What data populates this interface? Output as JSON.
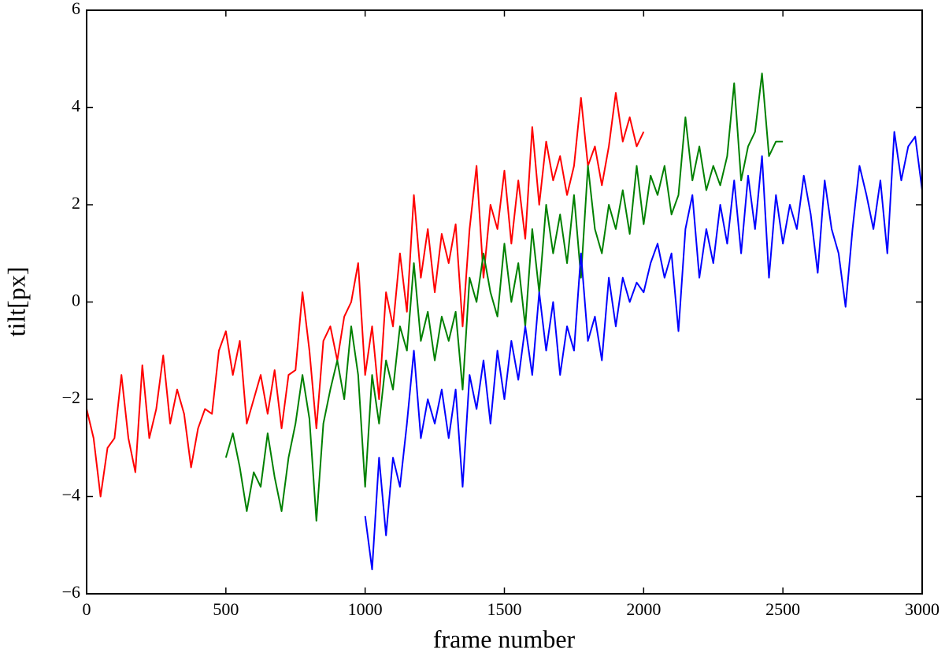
{
  "chart_data": {
    "type": "line",
    "xlabel": "frame number",
    "ylabel": "tilt[px]",
    "xlim": [
      0,
      3000
    ],
    "xticks": [
      0,
      500,
      1000,
      1500,
      2000,
      2500,
      3000
    ],
    "ylim": [
      -6,
      6
    ],
    "yticks": [
      {
        "value": -6,
        "label": "−6"
      },
      {
        "value": -4,
        "label": "−4"
      },
      {
        "value": -2,
        "label": "−2"
      },
      0,
      2,
      4,
      6
    ],
    "grid": false,
    "series": [
      {
        "color": "#ff0000",
        "x": [
          0,
          25,
          50,
          75,
          100,
          125,
          150,
          175,
          200,
          225,
          250,
          275,
          300,
          325,
          350,
          375,
          400,
          425,
          450,
          475,
          500,
          525,
          550,
          575,
          600,
          625,
          650,
          675,
          700,
          725,
          750,
          775,
          800,
          825,
          850,
          875,
          900,
          925,
          950,
          975,
          1000,
          1025,
          1050,
          1075,
          1100,
          1125,
          1150,
          1175,
          1200,
          1225,
          1250,
          1275,
          1300,
          1325,
          1350,
          1375,
          1400,
          1425,
          1450,
          1475,
          1500,
          1525,
          1550,
          1575,
          1600,
          1625,
          1650,
          1675,
          1700,
          1725,
          1750,
          1775,
          1800,
          1825,
          1850,
          1875,
          1900,
          1925,
          1950,
          1975,
          2000
        ],
        "values": [
          -2.2,
          -2.8,
          -4.0,
          -3.0,
          -2.8,
          -1.5,
          -2.8,
          -3.5,
          -1.3,
          -2.8,
          -2.2,
          -1.1,
          -2.5,
          -1.8,
          -2.3,
          -3.4,
          -2.6,
          -2.2,
          -2.3,
          -1.0,
          -0.6,
          -1.5,
          -0.8,
          -2.5,
          -2.0,
          -1.5,
          -2.3,
          -1.4,
          -2.6,
          -1.5,
          -1.4,
          0.2,
          -1.0,
          -2.6,
          -0.8,
          -0.5,
          -1.2,
          -0.3,
          0.0,
          0.8,
          -1.5,
          -0.5,
          -2.0,
          0.2,
          -0.5,
          1.0,
          -0.2,
          2.2,
          0.5,
          1.5,
          0.2,
          1.4,
          0.8,
          1.6,
          -0.5,
          1.5,
          2.8,
          0.5,
          2.0,
          1.5,
          2.7,
          1.2,
          2.5,
          1.3,
          3.6,
          2.0,
          3.3,
          2.5,
          3.0,
          2.2,
          2.8,
          4.2,
          2.8,
          3.2,
          2.4,
          3.2,
          4.3,
          3.3,
          3.8,
          3.2,
          3.5
        ]
      },
      {
        "color": "#008000",
        "x": [
          500,
          525,
          550,
          575,
          600,
          625,
          650,
          675,
          700,
          725,
          750,
          775,
          800,
          825,
          850,
          875,
          900,
          925,
          950,
          975,
          1000,
          1025,
          1050,
          1075,
          1100,
          1125,
          1150,
          1175,
          1200,
          1225,
          1250,
          1275,
          1300,
          1325,
          1350,
          1375,
          1400,
          1425,
          1450,
          1475,
          1500,
          1525,
          1550,
          1575,
          1600,
          1625,
          1650,
          1675,
          1700,
          1725,
          1750,
          1775,
          1800,
          1825,
          1850,
          1875,
          1900,
          1925,
          1950,
          1975,
          2000,
          2025,
          2050,
          2075,
          2100,
          2125,
          2150,
          2175,
          2200,
          2225,
          2250,
          2275,
          2300,
          2325,
          2350,
          2375,
          2400,
          2425,
          2450,
          2475,
          2500
        ],
        "values": [
          -3.2,
          -2.7,
          -3.4,
          -4.3,
          -3.5,
          -3.8,
          -2.7,
          -3.6,
          -4.3,
          -3.2,
          -2.5,
          -1.5,
          -2.4,
          -4.5,
          -2.5,
          -1.8,
          -1.2,
          -2.0,
          -0.5,
          -1.5,
          -3.8,
          -1.5,
          -2.5,
          -1.2,
          -1.8,
          -0.5,
          -1.0,
          0.8,
          -0.8,
          -0.2,
          -1.2,
          -0.3,
          -0.8,
          -0.2,
          -1.8,
          0.5,
          0.0,
          1.0,
          0.2,
          -0.3,
          1.2,
          0.0,
          0.8,
          -0.5,
          1.5,
          0.2,
          2.0,
          1.0,
          1.8,
          0.8,
          2.2,
          0.5,
          2.8,
          1.5,
          1.0,
          2.0,
          1.5,
          2.3,
          1.4,
          2.8,
          1.6,
          2.6,
          2.2,
          2.8,
          1.8,
          2.2,
          3.8,
          2.5,
          3.2,
          2.3,
          2.8,
          2.4,
          3.0,
          4.5,
          2.5,
          3.2,
          3.5,
          4.7,
          3.0,
          3.3,
          3.3
        ]
      },
      {
        "color": "#0000ff",
        "x": [
          1000,
          1025,
          1050,
          1075,
          1100,
          1125,
          1150,
          1175,
          1200,
          1225,
          1250,
          1275,
          1300,
          1325,
          1350,
          1375,
          1400,
          1425,
          1450,
          1475,
          1500,
          1525,
          1550,
          1575,
          1600,
          1625,
          1650,
          1675,
          1700,
          1725,
          1750,
          1775,
          1800,
          1825,
          1850,
          1875,
          1900,
          1925,
          1950,
          1975,
          2000,
          2025,
          2050,
          2075,
          2100,
          2125,
          2150,
          2175,
          2200,
          2225,
          2250,
          2275,
          2300,
          2325,
          2350,
          2375,
          2400,
          2425,
          2450,
          2475,
          2500,
          2525,
          2550,
          2575,
          2600,
          2625,
          2650,
          2675,
          2700,
          2725,
          2750,
          2775,
          2800,
          2825,
          2850,
          2875,
          2900,
          2925,
          2950,
          2975,
          3000
        ],
        "values": [
          -4.4,
          -5.5,
          -3.2,
          -4.8,
          -3.2,
          -3.8,
          -2.5,
          -1.0,
          -2.8,
          -2.0,
          -2.5,
          -1.8,
          -2.8,
          -1.8,
          -3.8,
          -1.5,
          -2.2,
          -1.2,
          -2.5,
          -1.0,
          -2.0,
          -0.8,
          -1.6,
          -0.5,
          -1.5,
          0.2,
          -1.0,
          0.0,
          -1.5,
          -0.5,
          -1.0,
          1.0,
          -0.8,
          -0.3,
          -1.2,
          0.5,
          -0.5,
          0.5,
          0.0,
          0.4,
          0.2,
          0.8,
          1.2,
          0.5,
          1.0,
          -0.6,
          1.5,
          2.2,
          0.5,
          1.5,
          0.8,
          2.0,
          1.2,
          2.5,
          1.0,
          2.6,
          1.5,
          3.0,
          0.5,
          2.2,
          1.2,
          2.0,
          1.5,
          2.6,
          1.8,
          0.6,
          2.5,
          1.5,
          1.0,
          -0.1,
          1.5,
          2.8,
          2.2,
          1.5,
          2.5,
          1.0,
          3.5,
          2.5,
          3.2,
          3.4,
          2.3
        ]
      }
    ]
  }
}
